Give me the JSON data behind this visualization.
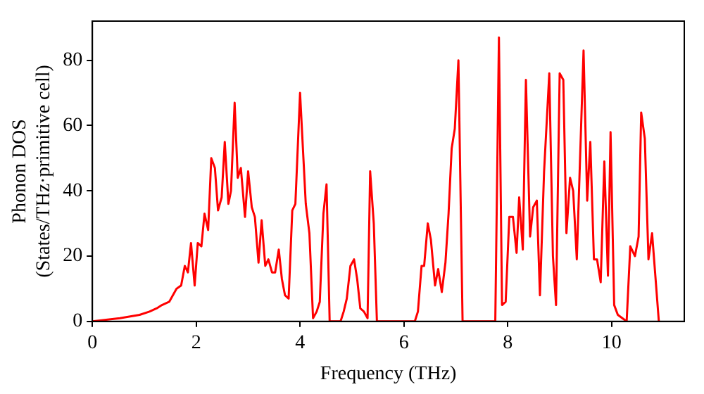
{
  "chart_data": {
    "type": "line",
    "xlabel": "Frequency (THz)",
    "ylabel": "Phonon DOS\n(States/THz·primitive cell)",
    "xlim": [
      0,
      11.4
    ],
    "xticks": [
      0,
      2,
      4,
      6,
      8,
      10
    ],
    "ylim": [
      0,
      92
    ],
    "yticks": [
      0,
      20,
      40,
      60,
      80
    ],
    "grid": false,
    "legend": false,
    "marker": "none",
    "line_style": "solid",
    "series": [
      {
        "color": "#ff0000",
        "x": [
          0,
          0.53,
          0.91,
          1.1,
          1.24,
          1.34,
          1.48,
          1.62,
          1.71,
          1.78,
          1.84,
          1.9,
          1.97,
          2.03,
          2.1,
          2.16,
          2.23,
          2.29,
          2.36,
          2.42,
          2.49,
          2.55,
          2.62,
          2.67,
          2.74,
          2.8,
          2.86,
          2.94,
          3.0,
          3.07,
          3.13,
          3.2,
          3.26,
          3.33,
          3.39,
          3.46,
          3.52,
          3.59,
          3.65,
          3.71,
          3.78,
          3.85,
          3.91,
          4.0,
          4.11,
          4.18,
          4.25,
          4.32,
          4.38,
          4.45,
          4.51,
          4.57,
          4.78,
          4.84,
          4.9,
          4.97,
          5.04,
          5.1,
          5.16,
          5.23,
          5.3,
          5.35,
          5.42,
          5.48,
          6.21,
          6.27,
          6.34,
          6.39,
          6.46,
          6.52,
          6.6,
          6.66,
          6.73,
          6.8,
          6.86,
          6.92,
          6.98,
          7.05,
          7.13,
          7.76,
          7.83,
          7.89,
          7.96,
          8.03,
          8.1,
          8.17,
          8.22,
          8.29,
          8.35,
          8.43,
          8.49,
          8.56,
          8.62,
          8.7,
          8.8,
          8.87,
          8.93,
          9.0,
          9.07,
          9.13,
          9.2,
          9.26,
          9.33,
          9.46,
          9.53,
          9.59,
          9.66,
          9.72,
          9.79,
          9.86,
          9.93,
          9.98,
          10.05,
          10.12,
          10.29,
          10.36,
          10.45,
          10.52,
          10.57,
          10.64,
          10.71,
          10.78,
          10.91
        ],
        "values": [
          0,
          1,
          2,
          3,
          4,
          5,
          6,
          10,
          11,
          17,
          15,
          24,
          11,
          24,
          23,
          33,
          28,
          50,
          47,
          34,
          38,
          55,
          36,
          40,
          67,
          44,
          47,
          32,
          46,
          35,
          32,
          18,
          31,
          17,
          19,
          15,
          15,
          22,
          13,
          8,
          7,
          34,
          36,
          70,
          36,
          27,
          1,
          3,
          6,
          33,
          42,
          0,
          0,
          3,
          7,
          17,
          19,
          13,
          4,
          3,
          1,
          46,
          30,
          0,
          0,
          3,
          17,
          17,
          30,
          25,
          11,
          16,
          9,
          18,
          33,
          53,
          59,
          80,
          0,
          0,
          87,
          5,
          6,
          32,
          32,
          21,
          38,
          22,
          74,
          26,
          35,
          37,
          8,
          46,
          76,
          20,
          5,
          76,
          74,
          27,
          44,
          40,
          19,
          83,
          37,
          55,
          19,
          19,
          12,
          49,
          14,
          58,
          5,
          2,
          0,
          23,
          20,
          26,
          64,
          56,
          19,
          27,
          0
        ]
      }
    ]
  }
}
